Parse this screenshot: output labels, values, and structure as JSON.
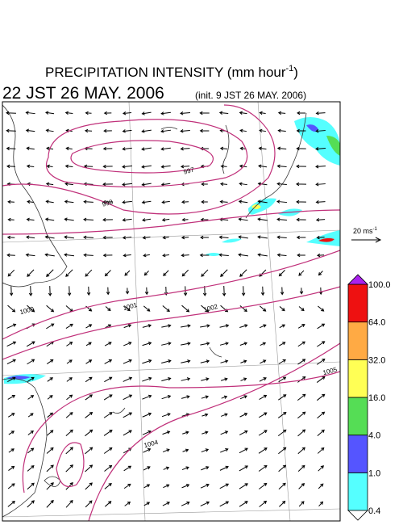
{
  "header": {
    "title": {
      "text": "PRECIPITATION INTENSITY (mm hour",
      "sup": "-1",
      "end": ")"
    },
    "valid_time": "22 JST 26 MAY. 2006",
    "init_time": "(init. 9 JST 26 MAY. 2006)"
  },
  "reference_vector": {
    "text": "20 ms",
    "sup": "-1"
  },
  "contour_labels": [
    997,
    998,
    1000,
    1001,
    1002,
    1004,
    1005
  ],
  "colorbar": {
    "levels": [
      0.4,
      {
        "value": 1,
        "label": "1.0"
      },
      {
        "value": 4,
        "label": "4.0"
      },
      {
        "value": 16,
        "label": "16.0"
      },
      {
        "value": 32,
        "label": "32.0"
      },
      {
        "value": 64,
        "label": "64.0"
      },
      {
        "value": 100,
        "label": "100.0"
      }
    ],
    "colors": [
      "#55ffff",
      "#5555ff",
      "#55dd55",
      "#ffff55",
      "#ffaa44",
      "#ee1111"
    ],
    "over_color": "#aa22ee"
  }
}
